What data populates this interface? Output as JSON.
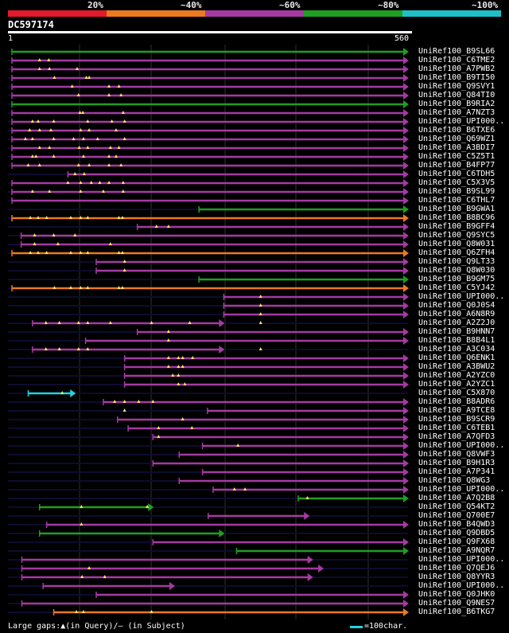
{
  "query_id": "DC597174",
  "ruler": {
    "start": "1",
    "end": "560"
  },
  "scale": [
    {
      "label": "20%",
      "color": "#e31a2c"
    },
    {
      "label": "~40%",
      "color": "#ec7a1e"
    },
    {
      "label": "~60%",
      "color": "#a53aa3"
    },
    {
      "label": "~80%",
      "color": "#1f9e22"
    },
    {
      "label": "~100%",
      "color": "#1fbfc8"
    }
  ],
  "colors": {
    "violet": "#a53aa3",
    "orange": "#ec7a1e",
    "green": "#1f9e22",
    "cyan": "#22d3de",
    "gap": "#f5e66a",
    "track": "#0c0c30"
  },
  "query_length": 560,
  "hits": [
    {
      "id": "UniRef100_B9SL66",
      "color": "green",
      "start": 1,
      "end": 560,
      "gaps": []
    },
    {
      "id": "UniRef100_C6TME2",
      "color": "violet",
      "start": 1,
      "end": 560,
      "gaps": [
        40,
        53
      ]
    },
    {
      "id": "UniRef100_A7PWB2",
      "color": "violet",
      "start": 1,
      "end": 560,
      "gaps": [
        40,
        54,
        93
      ]
    },
    {
      "id": "UniRef100_B9TI50",
      "color": "violet",
      "start": 1,
      "end": 560,
      "gaps": [
        61,
        106,
        110
      ]
    },
    {
      "id": "UniRef100_Q9SVY1",
      "color": "violet",
      "start": 1,
      "end": 560,
      "gaps": [
        86,
        138,
        152
      ]
    },
    {
      "id": "UniRef100_Q84TI0",
      "color": "violet",
      "start": 1,
      "end": 560,
      "gaps": [
        95,
        138,
        155
      ]
    },
    {
      "id": "UniRef100_B9RIA2",
      "color": "green",
      "start": 1,
      "end": 560,
      "gaps": []
    },
    {
      "id": "UniRef100_A7NZT3",
      "color": "violet",
      "start": 1,
      "end": 560,
      "gaps": [
        97,
        101,
        158
      ]
    },
    {
      "id": "UniRef100_UPI000..",
      "color": "violet",
      "start": 1,
      "end": 560,
      "gaps": [
        30,
        38,
        60,
        108,
        142,
        160
      ]
    },
    {
      "id": "UniRef100_B6TXE6",
      "color": "violet",
      "start": 1,
      "end": 560,
      "gaps": [
        26,
        40,
        56,
        98,
        110,
        148
      ]
    },
    {
      "id": "UniRef100_Q69WZ1",
      "color": "violet",
      "start": 1,
      "end": 560,
      "gaps": [
        20,
        30,
        60,
        88,
        102,
        122,
        160
      ]
    },
    {
      "id": "UniRef100_A3BDI7",
      "color": "violet",
      "start": 1,
      "end": 560,
      "gaps": [
        40,
        54,
        96,
        108,
        140,
        152
      ]
    },
    {
      "id": "UniRef100_C5Z5T1",
      "color": "violet",
      "start": 1,
      "end": 560,
      "gaps": [
        30,
        35,
        60,
        102,
        138,
        148
      ]
    },
    {
      "id": "UniRef100_B4FP77",
      "color": "violet",
      "start": 1,
      "end": 560,
      "gaps": [
        24,
        40,
        95,
        110,
        138,
        155
      ]
    },
    {
      "id": "UniRef100_C6TDH5",
      "color": "violet",
      "start": 80,
      "end": 560,
      "gaps": [
        90,
        103
      ]
    },
    {
      "id": "UniRef100_C5X3V5",
      "color": "violet",
      "start": 1,
      "end": 560,
      "gaps": [
        80,
        98,
        113,
        125,
        138,
        158
      ]
    },
    {
      "id": "UniRef100_B9SL99",
      "color": "violet",
      "start": 1,
      "end": 560,
      "gaps": [
        30,
        54,
        98,
        130,
        158
      ]
    },
    {
      "id": "UniRef100_C6THL7",
      "color": "violet",
      "start": 1,
      "end": 560,
      "gaps": []
    },
    {
      "id": "UniRef100_B9GWA1",
      "color": "green",
      "start": 265,
      "end": 560,
      "gaps": []
    },
    {
      "id": "UniRef100_B8BC96",
      "color": "orange",
      "start": 1,
      "end": 560,
      "gaps": [
        27,
        38,
        50,
        84,
        98,
        108,
        152,
        157
      ]
    },
    {
      "id": "UniRef100_B9GFF4",
      "color": "violet",
      "start": 178,
      "end": 560,
      "gaps": [
        205,
        222
      ]
    },
    {
      "id": "UniRef100_Q9SYC5",
      "color": "violet",
      "start": 14,
      "end": 560,
      "gaps": [
        33,
        60,
        90
      ]
    },
    {
      "id": "UniRef100_Q8W031",
      "color": "violet",
      "start": 14,
      "end": 560,
      "gaps": [
        33,
        66,
        140
      ]
    },
    {
      "id": "UniRef100_Q6ZFH4",
      "color": "orange",
      "start": 1,
      "end": 560,
      "gaps": [
        27,
        38,
        50,
        84,
        98,
        108,
        152,
        157
      ]
    },
    {
      "id": "UniRef100_Q9LT33",
      "color": "violet",
      "start": 120,
      "end": 560,
      "gaps": [
        160
      ]
    },
    {
      "id": "UniRef100_Q8W030",
      "color": "violet",
      "start": 120,
      "end": 560,
      "gaps": [
        160
      ]
    },
    {
      "id": "UniRef100_B9GM75",
      "color": "green",
      "start": 265,
      "end": 560,
      "gaps": []
    },
    {
      "id": "UniRef100_C5YJ42",
      "color": "orange",
      "start": 1,
      "end": 560,
      "gaps": [
        61,
        84,
        98,
        108,
        152,
        157
      ]
    },
    {
      "id": "UniRef100_UPI000..",
      "color": "violet",
      "start": 300,
      "end": 560,
      "gaps": [
        352
      ]
    },
    {
      "id": "UniRef100_Q0J0S4",
      "color": "violet",
      "start": 300,
      "end": 560,
      "gaps": [
        352
      ]
    },
    {
      "id": "UniRef100_A6N8R9",
      "color": "violet",
      "start": 300,
      "end": 560,
      "gaps": [
        352
      ]
    },
    {
      "id": "UniRef100_A2Z2J0",
      "color": "violet",
      "start": 30,
      "end": 300,
      "gaps": [
        49,
        68,
        95,
        108,
        140,
        198,
        252,
        352
      ]
    },
    {
      "id": "UniRef100_B9HNN7",
      "color": "violet",
      "start": 178,
      "end": 560,
      "gaps": [
        222
      ]
    },
    {
      "id": "UniRef100_B8B4L1",
      "color": "violet",
      "start": 105,
      "end": 560,
      "gaps": [
        222
      ]
    },
    {
      "id": "UniRef100_A3C034",
      "color": "violet",
      "start": 30,
      "end": 300,
      "gaps": [
        49,
        68,
        95,
        108,
        352
      ]
    },
    {
      "id": "UniRef100_Q6ENK1",
      "color": "violet",
      "start": 160,
      "end": 560,
      "gaps": [
        222,
        236,
        242,
        256
      ]
    },
    {
      "id": "UniRef100_A3BWU2",
      "color": "violet",
      "start": 160,
      "end": 560,
      "gaps": [
        222,
        236,
        242
      ]
    },
    {
      "id": "UniRef100_A2YZC0",
      "color": "violet",
      "start": 160,
      "end": 560,
      "gaps": [
        228,
        236
      ]
    },
    {
      "id": "UniRef100_A2YZC1",
      "color": "violet",
      "start": 160,
      "end": 560,
      "gaps": [
        236,
        245
      ]
    },
    {
      "id": "UniRef100_C5X870",
      "color": "cyan",
      "start": 24,
      "end": 90,
      "gaps": [
        72
      ]
    },
    {
      "id": "UniRef100_B8ADR6",
      "color": "violet",
      "start": 130,
      "end": 560,
      "gaps": [
        146,
        160,
        180,
        200
      ]
    },
    {
      "id": "UniRef100_A9TCE8",
      "color": "violet",
      "start": 277,
      "end": 560,
      "gaps": [
        160
      ]
    },
    {
      "id": "UniRef100_B9SCR9",
      "color": "violet",
      "start": 150,
      "end": 560,
      "gaps": [
        242
      ]
    },
    {
      "id": "UniRef100_C6TEB1",
      "color": "violet",
      "start": 165,
      "end": 560,
      "gaps": [
        208,
        255
      ]
    },
    {
      "id": "UniRef100_A7QFD3",
      "color": "violet",
      "start": 200,
      "end": 560,
      "gaps": [
        208
      ]
    },
    {
      "id": "UniRef100_UPI000..",
      "color": "violet",
      "start": 270,
      "end": 560,
      "gaps": [
        320
      ]
    },
    {
      "id": "UniRef100_Q8VWF3",
      "color": "violet",
      "start": 237,
      "end": 560,
      "gaps": []
    },
    {
      "id": "UniRef100_B9H1R3",
      "color": "violet",
      "start": 200,
      "end": 560,
      "gaps": []
    },
    {
      "id": "UniRef100_A7P341",
      "color": "violet",
      "start": 270,
      "end": 560,
      "gaps": []
    },
    {
      "id": "UniRef100_Q8WG3",
      "color": "violet",
      "start": 237,
      "end": 560,
      "gaps": []
    },
    {
      "id": "UniRef100_UPI000..",
      "color": "violet",
      "start": 285,
      "end": 560,
      "gaps": [
        315,
        330
      ]
    },
    {
      "id": "UniRef100_A7Q2B8",
      "color": "green",
      "start": 405,
      "end": 560,
      "gaps": [
        418
      ]
    },
    {
      "id": "UniRef100_Q54KT2",
      "color": "green",
      "start": 40,
      "end": 200,
      "gaps": [
        99,
        192
      ]
    },
    {
      "id": "UniRef100_Q700E7",
      "color": "violet",
      "start": 278,
      "end": 420,
      "gaps": []
    },
    {
      "id": "UniRef100_B4QWD3",
      "color": "violet",
      "start": 50,
      "end": 560,
      "gaps": [
        99
      ]
    },
    {
      "id": "UniRef100_Q9DBD5",
      "color": "green",
      "start": 40,
      "end": 300,
      "gaps": []
    },
    {
      "id": "UniRef100_Q9FX68",
      "color": "violet",
      "start": 200,
      "end": 560,
      "gaps": []
    },
    {
      "id": "UniRef100_A9NQR7",
      "color": "green",
      "start": 318,
      "end": 560,
      "gaps": []
    },
    {
      "id": "UniRef100_UPI000..",
      "color": "violet",
      "start": 15,
      "end": 425,
      "gaps": []
    },
    {
      "id": "UniRef100_Q7QEJ6",
      "color": "violet",
      "start": 15,
      "end": 440,
      "gaps": [
        110
      ]
    },
    {
      "id": "UniRef100_Q8YYR3",
      "color": "violet",
      "start": 15,
      "end": 425,
      "gaps": [
        100,
        132
      ]
    },
    {
      "id": "UniRef100_UPI000..",
      "color": "violet",
      "start": 45,
      "end": 230,
      "gaps": []
    },
    {
      "id": "UniRef100_Q0JHK0",
      "color": "violet",
      "start": 120,
      "end": 560,
      "gaps": []
    },
    {
      "id": "UniRef100_Q9NES7",
      "color": "violet",
      "start": 15,
      "end": 560,
      "gaps": []
    },
    {
      "id": "UniRef100_B6TKG7",
      "color": "orange",
      "start": 60,
      "end": 560,
      "gaps": [
        92,
        102,
        198
      ]
    }
  ],
  "legend": {
    "text": "Large gaps:▲(in Query)/– (in Subject)",
    "scale_text": "=100char."
  }
}
